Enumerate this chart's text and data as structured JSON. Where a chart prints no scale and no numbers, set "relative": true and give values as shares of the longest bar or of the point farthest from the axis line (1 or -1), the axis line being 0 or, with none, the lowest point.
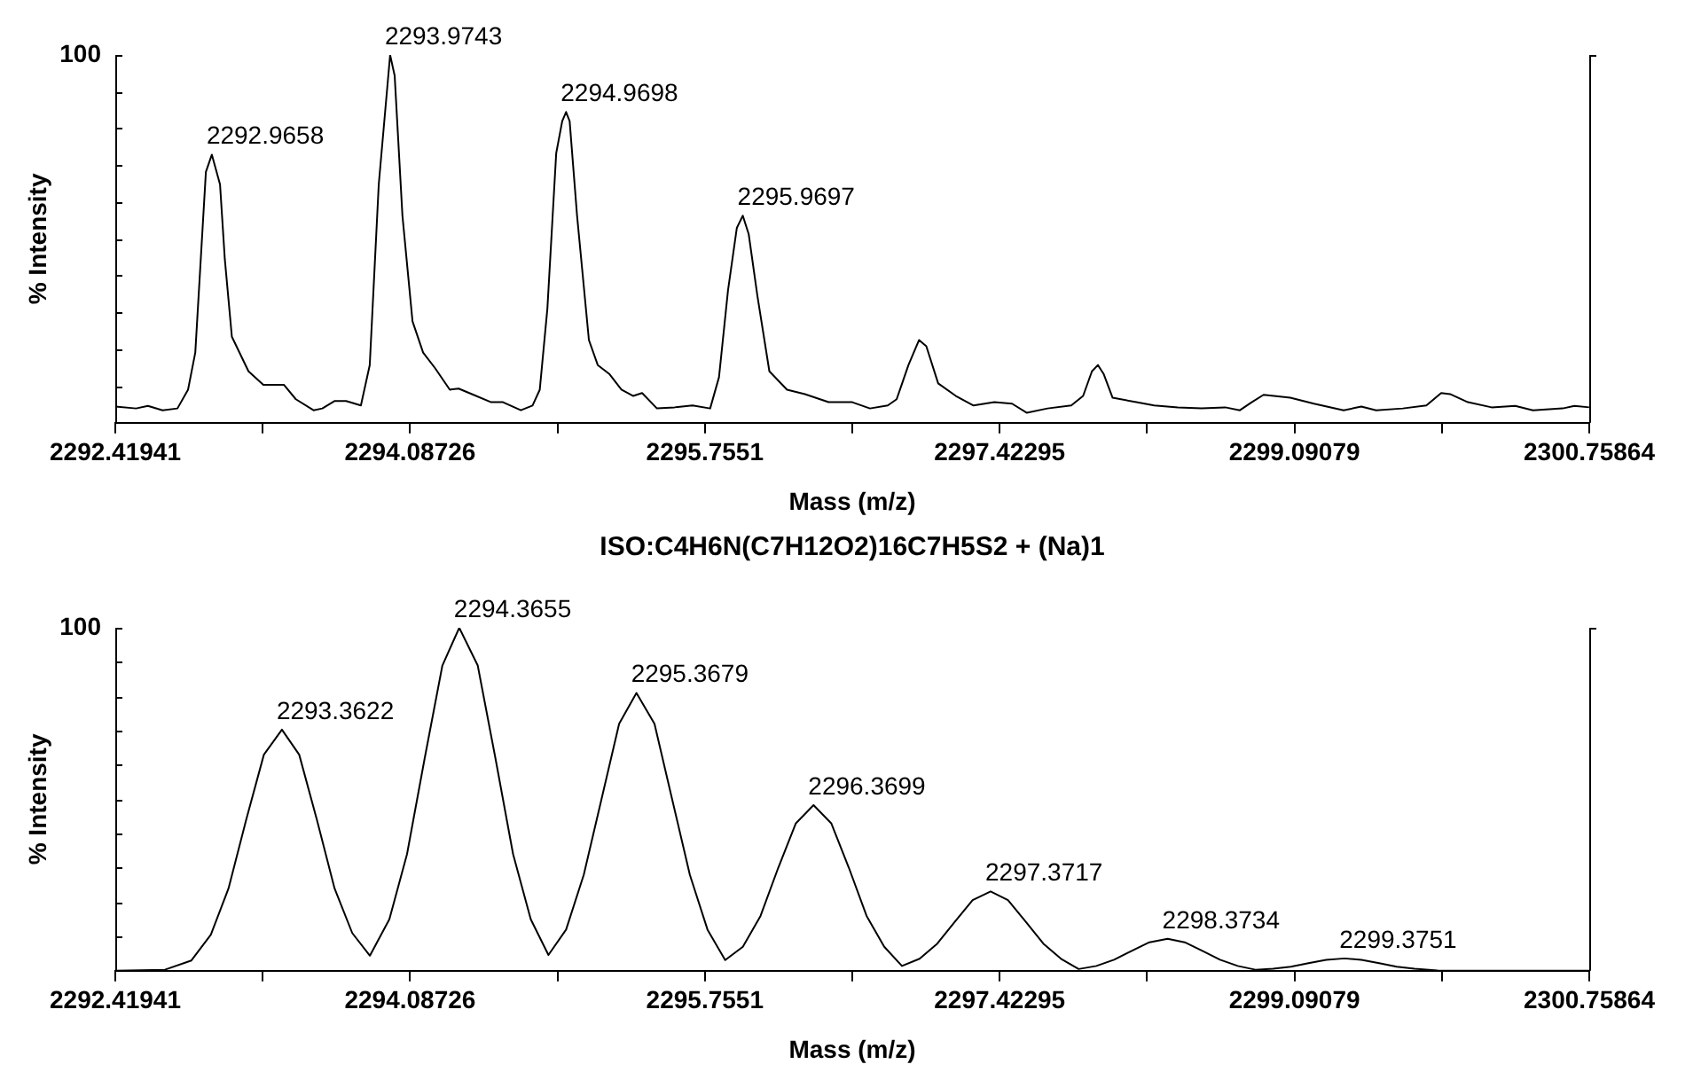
{
  "chart_data": [
    {
      "type": "line",
      "relative": true,
      "xlabel": "Mass (m/z)",
      "ylabel": "% Intensity",
      "xlim": [
        2292.41941,
        2300.75864
      ],
      "xticks": [
        2292.41941,
        {
          "value": 2293.25334,
          "label": null
        },
        2294.08726,
        {
          "value": 2294.92118,
          "label": null
        },
        2295.7551,
        {
          "value": 2296.58903,
          "label": null
        },
        2297.42295,
        {
          "value": 2298.25687,
          "label": null
        },
        2299.09079,
        {
          "value": 2299.92472,
          "label": null
        },
        2300.75864
      ],
      "series": [
        {
          "color": "#000000",
          "x": [
            2292.42,
            2292.537,
            2292.604,
            2292.687,
            2292.771,
            2292.831,
            2292.872,
            2292.932,
            2292.9658,
            2293.012,
            2293.039,
            2293.079,
            2293.173,
            2293.257,
            2293.374,
            2293.441,
            2293.541,
            2293.591,
            2293.659,
            2293.725,
            2293.809,
            2293.859,
            2293.91,
            2293.9743,
            2294.0,
            2294.044,
            2294.101,
            2294.161,
            2294.228,
            2294.312,
            2294.362,
            2294.446,
            2294.546,
            2294.613,
            2294.714,
            2294.78,
            2294.821,
            2294.864,
            2294.914,
            2294.948,
            2294.9698,
            2294.99,
            2295.032,
            2295.099,
            2295.149,
            2295.216,
            2295.283,
            2295.35,
            2295.4,
            2295.484,
            2295.584,
            2295.685,
            2295.785,
            2295.835,
            2295.886,
            2295.936,
            2295.9697,
            2296.003,
            2296.053,
            2296.12,
            2296.22,
            2296.321,
            2296.455,
            2296.589,
            2296.689,
            2296.79,
            2296.84,
            2296.907,
            2296.967,
            2297.008,
            2297.075,
            2297.175,
            2297.275,
            2297.393,
            2297.493,
            2297.577,
            2297.694,
            2297.828,
            2297.895,
            2297.945,
            2297.979,
            2298.012,
            2298.062,
            2298.196,
            2298.297,
            2298.431,
            2298.565,
            2298.699,
            2298.782,
            2298.849,
            2298.916,
            2299.067,
            2299.201,
            2299.369,
            2299.469,
            2299.553,
            2299.704,
            2299.837,
            2299.921,
            2299.971,
            2300.072,
            2300.206,
            2300.34,
            2300.44,
            2300.608,
            2300.675,
            2300.758
          ],
          "values": [
            0.044,
            0.039,
            0.046,
            0.034,
            0.039,
            0.09,
            0.191,
            0.682,
            0.729,
            0.648,
            0.445,
            0.234,
            0.14,
            0.103,
            0.103,
            0.064,
            0.034,
            0.039,
            0.059,
            0.059,
            0.047,
            0.157,
            0.648,
            1.0,
            0.944,
            0.563,
            0.276,
            0.191,
            0.149,
            0.09,
            0.093,
            0.076,
            0.056,
            0.056,
            0.034,
            0.047,
            0.09,
            0.31,
            0.733,
            0.82,
            0.845,
            0.82,
            0.563,
            0.225,
            0.157,
            0.132,
            0.09,
            0.073,
            0.081,
            0.039,
            0.042,
            0.047,
            0.039,
            0.124,
            0.36,
            0.53,
            0.563,
            0.513,
            0.343,
            0.14,
            0.09,
            0.078,
            0.056,
            0.056,
            0.039,
            0.047,
            0.064,
            0.157,
            0.225,
            0.208,
            0.107,
            0.073,
            0.047,
            0.056,
            0.052,
            0.027,
            0.039,
            0.047,
            0.073,
            0.14,
            0.157,
            0.132,
            0.068,
            0.056,
            0.047,
            0.042,
            0.039,
            0.042,
            0.034,
            0.056,
            0.076,
            0.068,
            0.052,
            0.034,
            0.044,
            0.034,
            0.039,
            0.047,
            0.081,
            0.078,
            0.056,
            0.042,
            0.046,
            0.034,
            0.039,
            0.046,
            0.042
          ]
        }
      ],
      "annotations": [
        "100",
        {
          "text": "2292.9658",
          "x": 2292.9658,
          "y": 0.729
        },
        {
          "text": "2293.9743",
          "x": 2293.9743,
          "y": 1.0
        },
        {
          "text": "2294.9698",
          "x": 2294.9698,
          "y": 0.845
        },
        {
          "text": "2295.9697",
          "x": 2295.9697,
          "y": 0.563
        }
      ]
    },
    {
      "type": "line",
      "relative": true,
      "title": "ISO:C4H6N(C7H12O2)16C7H5S2 + (Na)1",
      "xlabel": "Mass (m/z)",
      "ylabel": "% Intensity",
      "xlim": [
        2292.41941,
        2300.75864
      ],
      "xticks": [
        2292.41941,
        {
          "value": 2293.25334,
          "label": null
        },
        2294.08726,
        {
          "value": 2294.92118,
          "label": null
        },
        2295.7551,
        {
          "value": 2296.58903,
          "label": null
        },
        2297.42295,
        {
          "value": 2298.25687,
          "label": null
        },
        2299.09079,
        {
          "value": 2299.92472,
          "label": null
        },
        2300.75864
      ],
      "series": [
        {
          "color": "#000000",
          "x": [
            2292.42,
            2292.7,
            2292.85,
            2292.96,
            2293.06,
            2293.16,
            2293.26,
            2293.3622,
            2293.46,
            2293.56,
            2293.66,
            2293.76,
            2293.86,
            2293.97,
            2294.07,
            2294.17,
            2294.27,
            2294.3655,
            2294.47,
            2294.57,
            2294.67,
            2294.77,
            2294.87,
            2294.97,
            2295.07,
            2295.17,
            2295.27,
            2295.3679,
            2295.47,
            2295.57,
            2295.67,
            2295.77,
            2295.87,
            2295.97,
            2296.07,
            2296.17,
            2296.27,
            2296.3699,
            2296.47,
            2296.57,
            2296.67,
            2296.77,
            2296.87,
            2296.97,
            2297.07,
            2297.17,
            2297.27,
            2297.3717,
            2297.47,
            2297.57,
            2297.67,
            2297.77,
            2297.87,
            2297.97,
            2298.07,
            2298.17,
            2298.27,
            2298.3734,
            2298.47,
            2298.57,
            2298.67,
            2298.77,
            2298.87,
            2298.97,
            2299.07,
            2299.17,
            2299.27,
            2299.3751,
            2299.47,
            2299.57,
            2299.67,
            2299.77,
            2299.9,
            2300.2,
            2300.75864
          ],
          "values": [
            0,
            0.003,
            0.03,
            0.105,
            0.24,
            0.44,
            0.63,
            0.703,
            0.63,
            0.44,
            0.24,
            0.11,
            0.044,
            0.15,
            0.34,
            0.62,
            0.89,
            1.0,
            0.89,
            0.62,
            0.34,
            0.15,
            0.046,
            0.12,
            0.28,
            0.5,
            0.72,
            0.81,
            0.72,
            0.5,
            0.28,
            0.12,
            0.031,
            0.07,
            0.16,
            0.3,
            0.43,
            0.483,
            0.43,
            0.3,
            0.16,
            0.07,
            0.014,
            0.035,
            0.079,
            0.143,
            0.206,
            0.231,
            0.206,
            0.143,
            0.079,
            0.035,
            0.005,
            0.014,
            0.032,
            0.058,
            0.083,
            0.093,
            0.083,
            0.058,
            0.032,
            0.014,
            0.003,
            0.006,
            0.012,
            0.022,
            0.032,
            0.036,
            0.032,
            0.022,
            0.012,
            0.006,
            0.001,
            0,
            0
          ]
        }
      ],
      "annotations": [
        "100",
        {
          "text": "2293.3622",
          "x": 2293.3622,
          "y": 0.703
        },
        {
          "text": "2294.3655",
          "x": 2294.3655,
          "y": 1.0
        },
        {
          "text": "2295.3679",
          "x": 2295.3679,
          "y": 0.81
        },
        {
          "text": "2296.3699",
          "x": 2296.3699,
          "y": 0.483
        },
        {
          "text": "2297.3717",
          "x": 2297.3717,
          "y": 0.231
        },
        {
          "text": "2298.3734",
          "x": 2298.3734,
          "y": 0.093
        },
        {
          "text": "2299.3751",
          "x": 2299.3751,
          "y": 0.036
        }
      ]
    }
  ]
}
